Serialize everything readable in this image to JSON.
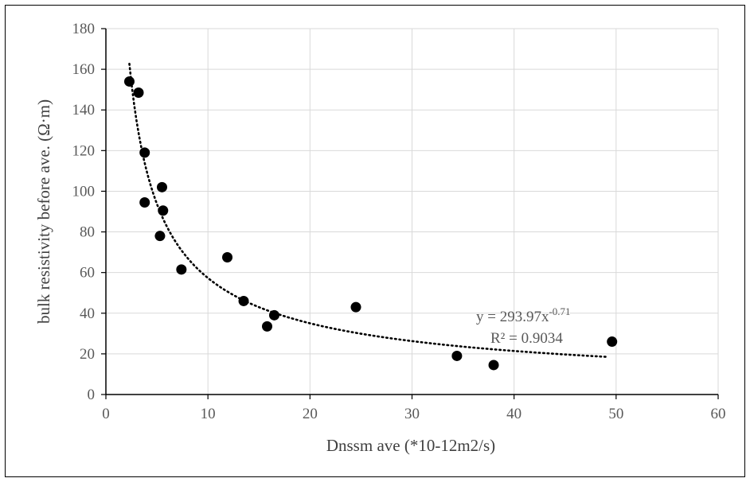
{
  "chart_data": {
    "type": "scatter",
    "title": "",
    "xlabel": "Dnssm ave  (*10-12m2/s)",
    "ylabel": "bulk resistivity before ave. (Ω·m)",
    "xlim": [
      0,
      60
    ],
    "ylim": [
      0,
      180
    ],
    "x_ticks": [
      0,
      10,
      20,
      30,
      40,
      50,
      60
    ],
    "y_ticks": [
      0,
      20,
      40,
      60,
      80,
      100,
      120,
      140,
      160,
      180
    ],
    "grid": true,
    "legend": "none",
    "series": [
      {
        "points": [
          {
            "x": 2.3,
            "y": 154
          },
          {
            "x": 3.2,
            "y": 148.5
          },
          {
            "x": 3.8,
            "y": 119
          },
          {
            "x": 3.8,
            "y": 94.5
          },
          {
            "x": 5.5,
            "y": 102
          },
          {
            "x": 5.6,
            "y": 90.5
          },
          {
            "x": 5.3,
            "y": 78
          },
          {
            "x": 7.4,
            "y": 61.5
          },
          {
            "x": 11.9,
            "y": 67.5
          },
          {
            "x": 13.5,
            "y": 46
          },
          {
            "x": 15.8,
            "y": 33.5
          },
          {
            "x": 16.5,
            "y": 39
          },
          {
            "x": 24.5,
            "y": 43
          },
          {
            "x": 34.4,
            "y": 19
          },
          {
            "x": 38.0,
            "y": 14.5
          },
          {
            "x": 49.6,
            "y": 26
          }
        ]
      }
    ],
    "trendline": {
      "type": "power",
      "a": 293.97,
      "b": -0.71,
      "x_range": [
        2.3,
        49.2
      ],
      "equation_prefix": "y = 293.97x",
      "equation_exponent": "-0.71",
      "r_squared_label": "R² = 0.9034"
    },
    "colors": {
      "marker": "#000000",
      "grid": "#d9d9d9",
      "axis": "#000000",
      "trend": "#000000"
    }
  }
}
